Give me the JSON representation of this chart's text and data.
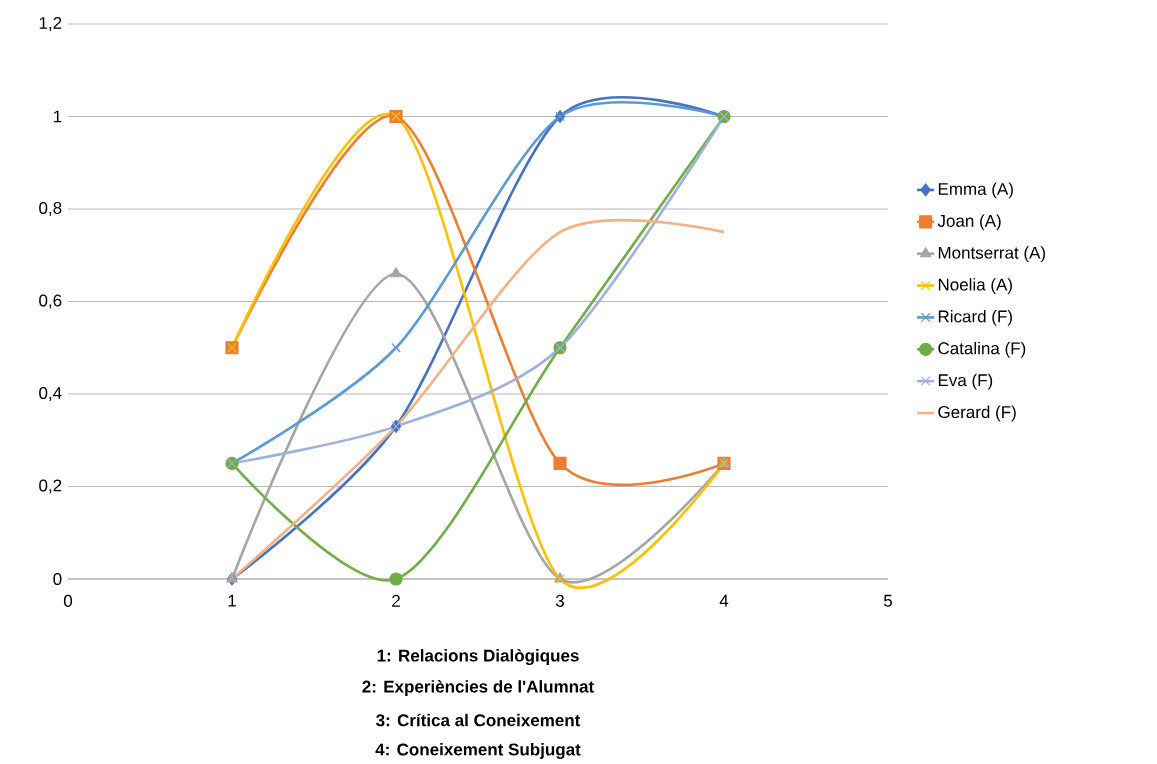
{
  "chart_data": {
    "type": "line",
    "annotations": [
      "1: Relacions Dialògiques",
      "2: Experiències de l'Alumnat",
      "3: Crítica al Coneixement",
      "4: Coneixement Subjugat"
    ],
    "x": [
      1,
      2,
      3,
      4
    ],
    "series": [
      {
        "name": "Emma (A)",
        "color": "#4472c4",
        "marker": "diamond",
        "values": [
          0,
          0.33,
          1,
          1
        ]
      },
      {
        "name": "Joan (A)",
        "color": "#ed7d31",
        "marker": "square",
        "values": [
          0.5,
          1,
          0.25,
          0.25
        ]
      },
      {
        "name": "Montserrat (A)",
        "color": "#a5a5a5",
        "marker": "triangle",
        "values": [
          0,
          0.66,
          0,
          0.25
        ]
      },
      {
        "name": "Noelia (A)",
        "color": "#ffc000",
        "marker": "cross",
        "values": [
          0.5,
          1,
          0,
          0.25
        ]
      },
      {
        "name": "Ricard (F)",
        "color": "#5b9bd5",
        "marker": "cross",
        "values": [
          0.25,
          0.5,
          1,
          1
        ]
      },
      {
        "name": "Catalina (F)",
        "color": "#70ad47",
        "marker": "circle",
        "values": [
          0.25,
          0,
          0.5,
          1
        ]
      },
      {
        "name": "Eva (F)",
        "color": "#9eb0dd",
        "marker": "cross",
        "values": [
          0.25,
          0.33,
          0.5,
          1
        ]
      },
      {
        "name": "Gerard (F)",
        "color": "#f4b183",
        "marker": "none",
        "values": [
          0,
          0.33,
          0.75,
          0.75
        ]
      }
    ],
    "xlim": [
      0,
      5
    ],
    "xticks": [
      0,
      1,
      2,
      3,
      4,
      5
    ],
    "ylim": [
      0,
      1.2
    ],
    "yticks": [
      0,
      {
        "value": 0.2,
        "label": "0,2"
      },
      {
        "value": 0.4,
        "label": "0,4"
      },
      {
        "value": 0.6,
        "label": "0,6"
      },
      {
        "value": 0.8,
        "label": "0,8"
      },
      1,
      {
        "value": 1.2,
        "label": "1,2"
      }
    ],
    "grid": "y",
    "legend": "right"
  }
}
